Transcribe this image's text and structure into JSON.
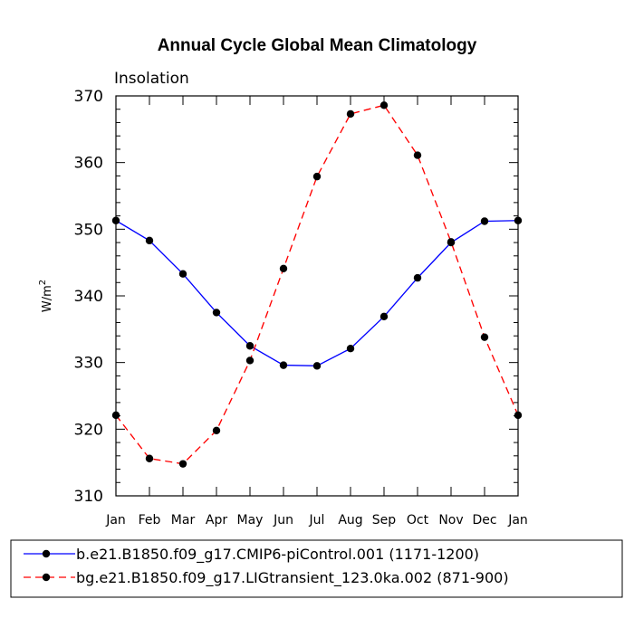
{
  "chart_data": {
    "type": "line",
    "title": "Annual Cycle Global Mean Climatology",
    "panel_label": "Insolation",
    "ylabel": "W/m",
    "ylabel_superscript": "2",
    "xlabel": "",
    "categories": [
      "Jan",
      "Feb",
      "Mar",
      "Apr",
      "May",
      "Jun",
      "Jul",
      "Aug",
      "Sep",
      "Oct",
      "Nov",
      "Dec",
      "Jan"
    ],
    "ylim": [
      310,
      370
    ],
    "yticks": [
      310,
      320,
      330,
      340,
      350,
      360,
      370
    ],
    "grid": false,
    "legend_position": "bottom",
    "series": [
      {
        "name": "b.e21.B1850.f09_g17.CMIP6-piControl.001 (1171-1200)",
        "color": "#0000ff",
        "line_style": "solid",
        "marker": "filled-circle",
        "values": [
          351.3,
          348.3,
          343.3,
          337.5,
          332.5,
          329.6,
          329.5,
          332.1,
          336.9,
          342.7,
          348.0,
          351.2,
          351.3
        ]
      },
      {
        "name": "bg.e21.B1850.f09_g17.LIGtransient_123.0ka.002 (871-900)",
        "color": "#ff0000",
        "line_style": "dashed",
        "marker": "filled-circle",
        "values": [
          322.1,
          315.6,
          314.8,
          319.8,
          330.3,
          344.1,
          357.9,
          367.3,
          368.6,
          361.1,
          348.1,
          333.8,
          322.1
        ]
      }
    ]
  }
}
